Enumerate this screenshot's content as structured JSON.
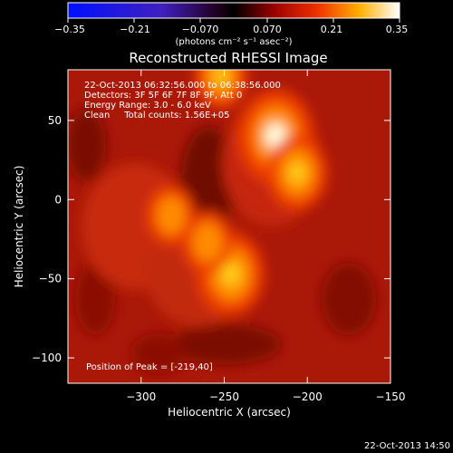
{
  "colorbar": {
    "ticks": [
      "−0.35",
      "−0.21",
      "−0.070",
      "0.070",
      "0.21",
      "0.35"
    ],
    "units_label": "(photons cm⁻² s⁻¹ asec⁻²)"
  },
  "footer": {
    "timestamp": "22-Oct-2013 14:50"
  },
  "chart_data": {
    "type": "heatmap",
    "title": "Reconstructed RHESSI Image",
    "xlabel": "Heliocentric X (arcsec)",
    "ylabel": "Heliocentric Y (arcsec)",
    "xlim": [
      -344,
      -150
    ],
    "ylim": [
      -116,
      82
    ],
    "xticks": [
      "−300",
      "−250",
      "−200",
      "−150"
    ],
    "xtick_values": [
      -300,
      -250,
      -200,
      -150
    ],
    "yticks": [
      "−100",
      "−50",
      "0",
      "50"
    ],
    "ytick_values": [
      -100,
      -50,
      0,
      50
    ],
    "colormap": "hot-fire",
    "value_range": [
      -0.35,
      0.35
    ],
    "sources": [
      {
        "x": -219,
        "y": 40,
        "peak": 0.35
      },
      {
        "x": -206,
        "y": 17,
        "peak": 0.26
      },
      {
        "x": -246,
        "y": -47,
        "peak": 0.3
      },
      {
        "x": -260,
        "y": -27,
        "peak": 0.2
      },
      {
        "x": -282,
        "y": -10,
        "peak": 0.19
      },
      {
        "x": -252,
        "y": 78,
        "peak": 0.22
      }
    ],
    "annotations": {
      "time_range": "22-Oct-2013 06:32:56.000 to 06:38:56.000",
      "detectors": "Detectors: 3F 5F 6F 7F 8F 9F, Att 0",
      "energy": "Energy Range: 3.0 - 6.0 keV",
      "algorithm": "Clean     Total counts: 1.56E+05",
      "peak": "Position of Peak = [-219,40]"
    }
  }
}
